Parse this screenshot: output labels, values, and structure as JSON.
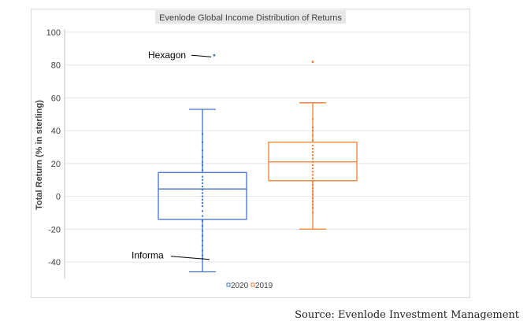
{
  "chart_data": {
    "type": "box",
    "title": "Evenlode Global Income Distribution of Returns",
    "ylabel": "Total Return (% in sterling)",
    "xlabel": "",
    "ylim": [
      -50,
      100
    ],
    "yticks": [
      100,
      80,
      60,
      40,
      20,
      0,
      -20,
      -40
    ],
    "grid": true,
    "legend_position": "bottom",
    "series": [
      {
        "name": "2020",
        "color": "#4472c4",
        "min": -46,
        "q1": -14,
        "median": 4.5,
        "q3": 14.5,
        "max": 53,
        "outliers": [
          86
        ],
        "points": [
          -38,
          -36,
          -33,
          -30,
          -27,
          -24,
          -21,
          -18,
          -15,
          -12,
          -9,
          -6,
          -4,
          -2,
          0,
          2,
          4,
          6,
          8,
          10,
          12,
          16,
          19,
          21,
          24,
          28,
          33,
          38
        ]
      },
      {
        "name": "2019",
        "color": "#ed7d31",
        "min": -20,
        "q1": 9.5,
        "median": 21,
        "q3": 33,
        "max": 57,
        "outliers": [
          82
        ],
        "points": [
          -10,
          -7,
          -5,
          -3,
          -1,
          1,
          3,
          5,
          7,
          9,
          11,
          13,
          15,
          17,
          19,
          21,
          23,
          25,
          27,
          29,
          31,
          34,
          37,
          40,
          42,
          47
        ]
      }
    ],
    "annotations": [
      {
        "text": "Hexagon",
        "target_series": "2020",
        "target_value": 86
      },
      {
        "text": "Informa",
        "target_series": "2020",
        "target_value": -37
      }
    ]
  },
  "source": "Source: Evenlode Investment Management"
}
